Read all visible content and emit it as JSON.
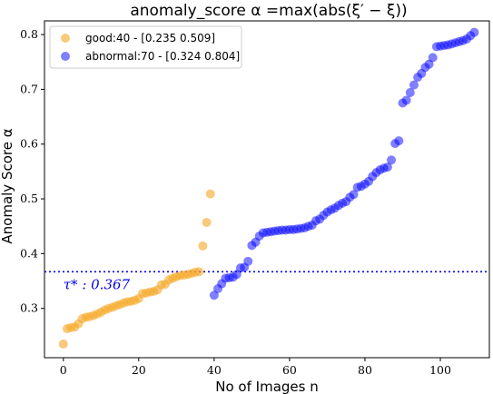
{
  "chart_data": {
    "type": "scatter",
    "title": "anomaly_score α =max(abs(ξ′ − ξ))",
    "xlabel": "No of Images n",
    "ylabel": "Anomaly Score α",
    "xlim": [
      -5,
      113
    ],
    "ylim": [
      0.21,
      0.825
    ],
    "xticks": [
      0,
      20,
      40,
      60,
      80,
      100
    ],
    "yticks": [
      0.3,
      0.4,
      0.5,
      0.6,
      0.7,
      0.8
    ],
    "grid": false,
    "legend_position": "upper-left",
    "series": [
      {
        "name": "good:40 - [0.235 0.509]",
        "color": "#f5a623",
        "x": [
          0,
          1,
          2,
          3,
          4,
          5,
          6,
          7,
          8,
          9,
          10,
          11,
          12,
          13,
          14,
          15,
          16,
          17,
          18,
          19,
          20,
          21,
          22,
          23,
          24,
          25,
          26,
          27,
          28,
          29,
          30,
          31,
          32,
          33,
          34,
          35,
          36,
          37,
          38,
          39
        ],
        "y": [
          0.235,
          0.263,
          0.265,
          0.266,
          0.272,
          0.281,
          0.284,
          0.285,
          0.287,
          0.29,
          0.293,
          0.297,
          0.3,
          0.302,
          0.305,
          0.307,
          0.31,
          0.312,
          0.313,
          0.315,
          0.318,
          0.327,
          0.328,
          0.33,
          0.331,
          0.334,
          0.343,
          0.344,
          0.352,
          0.355,
          0.358,
          0.36,
          0.361,
          0.362,
          0.364,
          0.366,
          0.367,
          0.414,
          0.457,
          0.509
        ]
      },
      {
        "name": "abnormal:70 - [0.324 0.804]",
        "color": "#0000ff",
        "x": [
          40,
          41,
          42,
          43,
          44,
          45,
          46,
          47,
          48,
          49,
          50,
          51,
          52,
          53,
          54,
          55,
          56,
          57,
          58,
          59,
          60,
          61,
          62,
          63,
          64,
          65,
          66,
          67,
          68,
          69,
          70,
          71,
          72,
          73,
          74,
          75,
          76,
          77,
          78,
          79,
          80,
          81,
          82,
          83,
          84,
          85,
          86,
          87,
          88,
          89,
          90,
          91,
          92,
          93,
          94,
          95,
          96,
          97,
          98,
          99,
          100,
          101,
          102,
          103,
          104,
          105,
          106,
          107,
          108,
          109
        ],
        "y": [
          0.324,
          0.336,
          0.345,
          0.355,
          0.356,
          0.357,
          0.362,
          0.374,
          0.375,
          0.386,
          0.415,
          0.421,
          0.432,
          0.438,
          0.439,
          0.44,
          0.441,
          0.442,
          0.443,
          0.443,
          0.444,
          0.444,
          0.445,
          0.446,
          0.447,
          0.45,
          0.452,
          0.46,
          0.463,
          0.47,
          0.476,
          0.48,
          0.483,
          0.488,
          0.492,
          0.495,
          0.503,
          0.508,
          0.521,
          0.523,
          0.527,
          0.532,
          0.541,
          0.548,
          0.553,
          0.556,
          0.558,
          0.571,
          0.601,
          0.606,
          0.675,
          0.68,
          0.694,
          0.708,
          0.722,
          0.729,
          0.74,
          0.746,
          0.758,
          0.778,
          0.779,
          0.78,
          0.781,
          0.783,
          0.785,
          0.787,
          0.789,
          0.792,
          0.798,
          0.804
        ]
      }
    ],
    "threshold": {
      "value": 0.367,
      "label": "τ* : 0.367",
      "color": "#0000ee",
      "style": "dotted"
    }
  }
}
